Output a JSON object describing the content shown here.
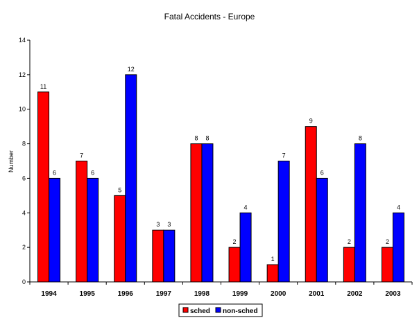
{
  "chart_data": {
    "type": "bar",
    "title": "Fatal Accidents - Europe",
    "xlabel": "",
    "ylabel": "Number",
    "ylim": [
      0,
      14
    ],
    "yticks": [
      0,
      2,
      4,
      6,
      8,
      10,
      12,
      14
    ],
    "grid": false,
    "legend_position": "bottom",
    "categories": [
      "1994",
      "1995",
      "1996",
      "1997",
      "1998",
      "1999",
      "2000",
      "2001",
      "2002",
      "2003"
    ],
    "series": [
      {
        "name": "sched",
        "color": "#ff0000",
        "values": [
          11,
          7,
          5,
          3,
          8,
          2,
          1,
          9,
          2,
          2
        ]
      },
      {
        "name": "non-sched",
        "color": "#0000ff",
        "values": [
          6,
          6,
          12,
          3,
          8,
          4,
          7,
          6,
          8,
          4
        ]
      }
    ]
  }
}
